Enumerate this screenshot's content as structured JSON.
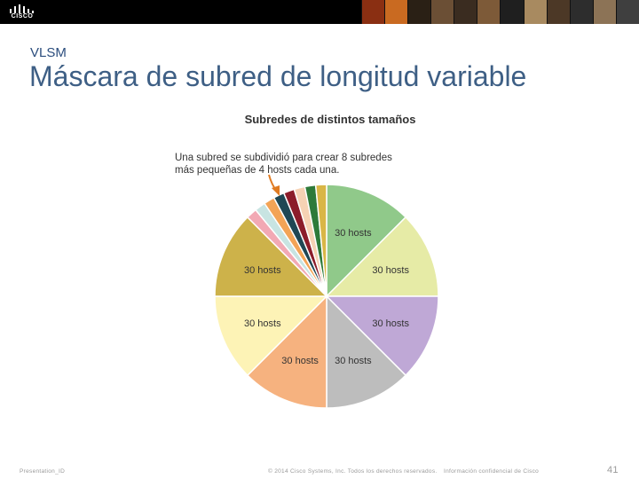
{
  "header": {
    "logo_text": "CISCO",
    "photo_colors": [
      "#8a2f12",
      "#c96a21",
      "#2a2015",
      "#6b4f35",
      "#3a2c20",
      "#7d5a38",
      "#1f1f1f",
      "#a88a60",
      "#4c3826",
      "#2d2d2d",
      "#8c7356",
      "#3f3f3f"
    ]
  },
  "slide": {
    "section_label": "VLSM",
    "title": "Máscara de subred de longitud variable"
  },
  "annotation_text_line1": "Una subred se subdividió para crear 8 subredes",
  "annotation_text_line2": "más pequeñas de 4 hosts cada una.",
  "chart_data": {
    "type": "pie",
    "title": "Subredes de distintos tamaños",
    "slices": [
      {
        "label": "30 hosts",
        "value": 32,
        "color": "#90c98a"
      },
      {
        "label": "30 hosts",
        "value": 32,
        "color": "#e6eba6"
      },
      {
        "label": "30 hosts",
        "value": 32,
        "color": "#bfa8d6"
      },
      {
        "label": "30 hosts",
        "value": 32,
        "color": "#bdbdbd"
      },
      {
        "label": "30 hosts",
        "value": 32,
        "color": "#f6b27f"
      },
      {
        "label": "30 hosts",
        "value": 32,
        "color": "#fdf3b6"
      },
      {
        "label": "30 hosts",
        "value": 32,
        "color": "#cdb24a"
      },
      {
        "label": "",
        "value": 4,
        "color": "#f2a9b4"
      },
      {
        "label": "",
        "value": 4,
        "color": "#c8e4e2"
      },
      {
        "label": "",
        "value": 4,
        "color": "#f3a456"
      },
      {
        "label": "",
        "value": 4,
        "color": "#1f4754"
      },
      {
        "label": "",
        "value": 4,
        "color": "#8c1c2a"
      },
      {
        "label": "",
        "value": 4,
        "color": "#f6d2b4"
      },
      {
        "label": "",
        "value": 4,
        "color": "#2e7a3a"
      },
      {
        "label": "",
        "value": 4,
        "color": "#d9b646"
      }
    ],
    "arrow_color": "#e07b22"
  },
  "footer": {
    "left": "Presentation_ID",
    "middle": "© 2014 Cisco Systems, Inc. Todos los derechos reservados.",
    "right": "Información confidencial de Cisco",
    "page_number": "41"
  }
}
